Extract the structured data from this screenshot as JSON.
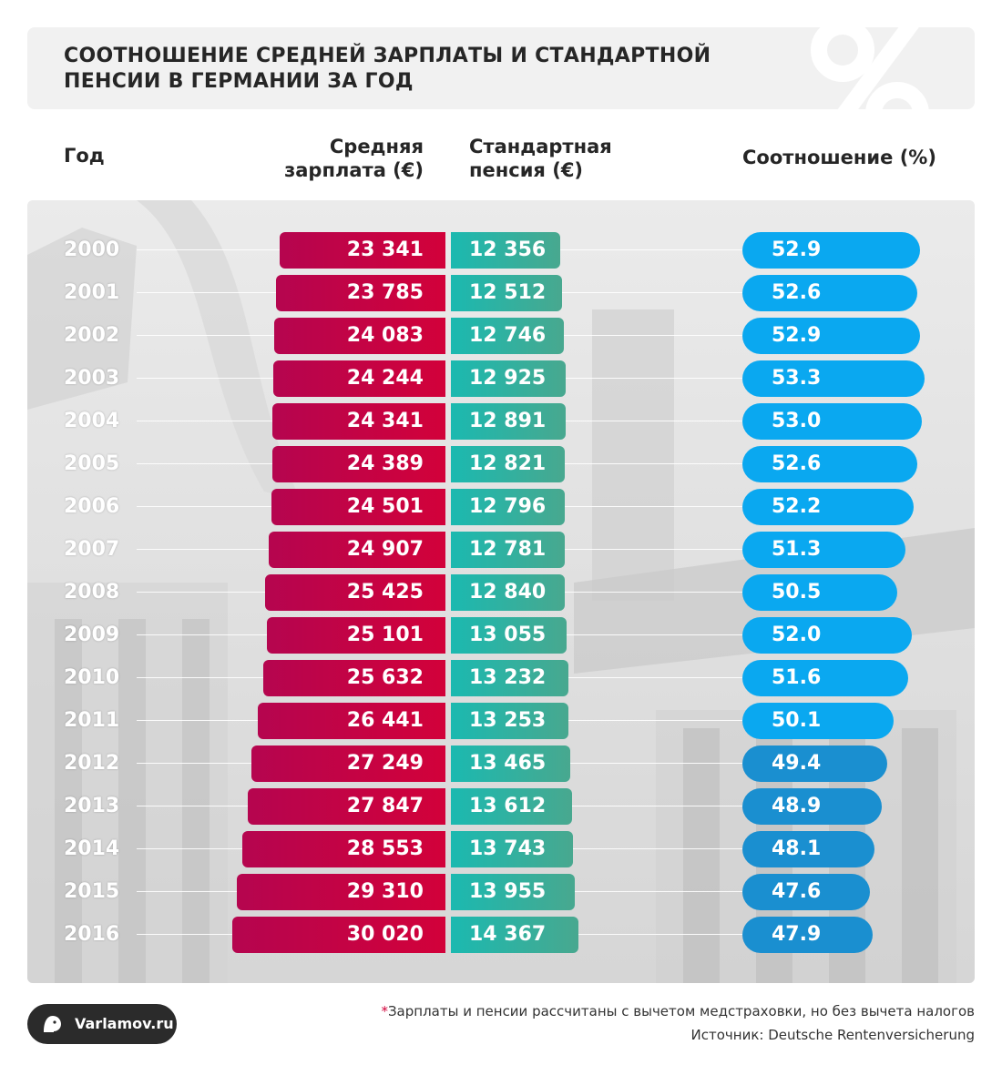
{
  "title": "СООТНОШЕНИЕ СРЕДНЕЙ ЗАРПЛАТЫ И СТАНДАРТНОЙ ПЕНСИИ В ГЕРМАНИИ ЗА ГОД",
  "headers": {
    "year": "Год",
    "salary_line1": "Средняя",
    "salary_line2": "зарплата (€)",
    "pension_line1": "Стандартная",
    "pension_line2": "пенсия (€)",
    "ratio": "Соотношение (%)"
  },
  "colors": {
    "salary": "#c8033f",
    "pension": "#2fb3a0",
    "ratio_high": "#0aa8f0",
    "ratio_low": "#1a8fd0"
  },
  "chart_data": {
    "type": "table",
    "columns": [
      "Год",
      "Средняя зарплата (€)",
      "Стандартная пенсия (€)",
      "Соотношение (%)"
    ],
    "rows": [
      {
        "year": "2000",
        "salary": 23341,
        "pension": 12356,
        "salary_label": "23 341",
        "pension_label": "12 356",
        "ratio": "52.9"
      },
      {
        "year": "2001",
        "salary": 23785,
        "pension": 12512,
        "salary_label": "23 785",
        "pension_label": "12 512",
        "ratio": "52.6"
      },
      {
        "year": "2002",
        "salary": 24083,
        "pension": 12746,
        "salary_label": "24 083",
        "pension_label": "12 746",
        "ratio": "52.9"
      },
      {
        "year": "2003",
        "salary": 24244,
        "pension": 12925,
        "salary_label": "24 244",
        "pension_label": "12 925",
        "ratio": "53.3"
      },
      {
        "year": "2004",
        "salary": 24341,
        "pension": 12891,
        "salary_label": "24 341",
        "pension_label": "12 891",
        "ratio": "53.0"
      },
      {
        "year": "2005",
        "salary": 24389,
        "pension": 12821,
        "salary_label": "24 389",
        "pension_label": "12 821",
        "ratio": "52.6"
      },
      {
        "year": "2006",
        "salary": 24501,
        "pension": 12796,
        "salary_label": "24 501",
        "pension_label": "12 796",
        "ratio": "52.2"
      },
      {
        "year": "2007",
        "salary": 24907,
        "pension": 12781,
        "salary_label": "24 907",
        "pension_label": "12 781",
        "ratio": "51.3"
      },
      {
        "year": "2008",
        "salary": 25425,
        "pension": 12840,
        "salary_label": "25 425",
        "pension_label": "12 840",
        "ratio": "50.5"
      },
      {
        "year": "2009",
        "salary": 25101,
        "pension": 13055,
        "salary_label": "25 101",
        "pension_label": "13 055",
        "ratio": "52.0"
      },
      {
        "year": "2010",
        "salary": 25632,
        "pension": 13232,
        "salary_label": "25 632",
        "pension_label": "13 232",
        "ratio": "51.6"
      },
      {
        "year": "2011",
        "salary": 26441,
        "pension": 13253,
        "salary_label": "26 441",
        "pension_label": "13 253",
        "ratio": "50.1"
      },
      {
        "year": "2012",
        "salary": 27249,
        "pension": 13465,
        "salary_label": "27 249",
        "pension_label": "13 465",
        "ratio": "49.4"
      },
      {
        "year": "2013",
        "salary": 27847,
        "pension": 13612,
        "salary_label": "27 847",
        "pension_label": "13 612",
        "ratio": "48.9"
      },
      {
        "year": "2014",
        "salary": 28553,
        "pension": 13743,
        "salary_label": "28 553",
        "pension_label": "13 743",
        "ratio": "48.1"
      },
      {
        "year": "2015",
        "salary": 29310,
        "pension": 13955,
        "salary_label": "29 310",
        "pension_label": "13 955",
        "ratio": "47.6"
      },
      {
        "year": "2016",
        "salary": 30020,
        "pension": 14367,
        "salary_label": "30 020",
        "pension_label": "14 367",
        "ratio": "47.9"
      }
    ]
  },
  "footer": {
    "logo_text": "Varlamov.ru",
    "footnote_star": "*",
    "footnote": "Зарплаты и пенсии рассчитаны с вычетом медстраховки, но без вычета налогов",
    "source": "Источник: Deutsche Rentenversicherung"
  }
}
